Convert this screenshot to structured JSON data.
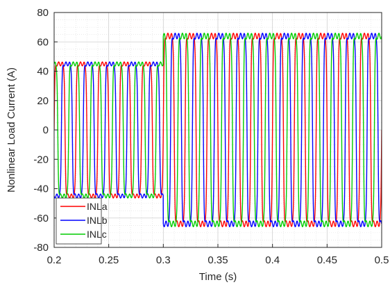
{
  "chart_data": {
    "type": "line",
    "xlabel": "Time (s)",
    "ylabel": "Nonlinear Load Current (A)",
    "xlim": [
      0.2,
      0.5
    ],
    "ylim": [
      -80,
      80
    ],
    "xticks": [
      "0.2",
      "0.25",
      "0.3",
      "0.35",
      "0.4",
      "0.45",
      "0.5"
    ],
    "yticks": [
      "-80",
      "-60",
      "-40",
      "-20",
      "0",
      "20",
      "40",
      "60",
      "80"
    ],
    "grid": true,
    "minor_grid": true,
    "legend_position": "bottom-left",
    "frequency_hz": 50,
    "step_time_s": 0.3,
    "series": [
      {
        "name": "INLa",
        "color": "#ff0000",
        "phase_deg": 0,
        "amplitude_before": 45,
        "amplitude_after": 64
      },
      {
        "name": "INLb",
        "color": "#0000ff",
        "phase_deg": -120,
        "amplitude_before": 45,
        "amplitude_after": 64
      },
      {
        "name": "INLc",
        "color": "#00cc00",
        "phase_deg": 120,
        "amplitude_before": 45,
        "amplitude_after": 64
      }
    ]
  }
}
